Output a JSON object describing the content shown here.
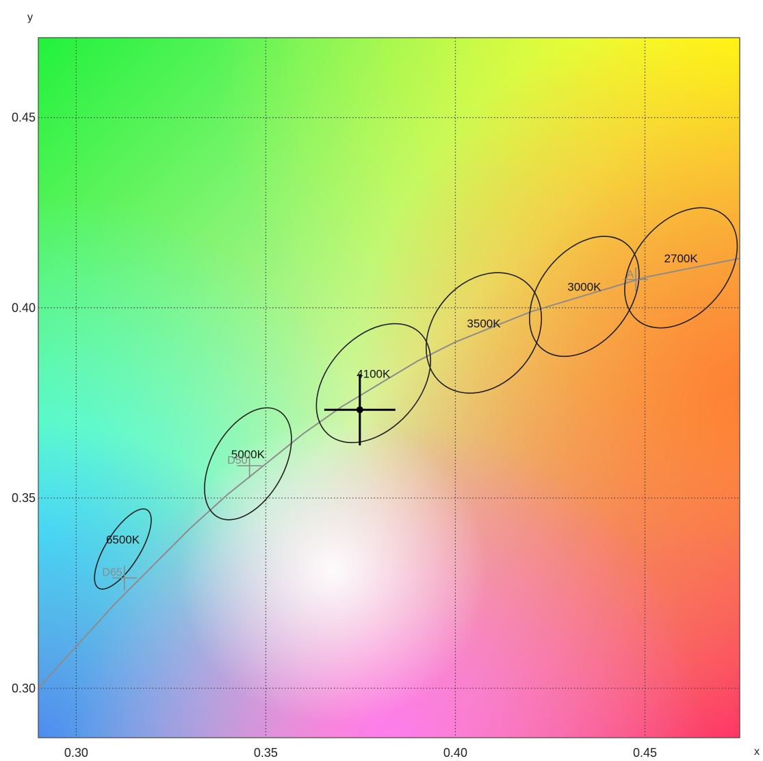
{
  "chart_data": {
    "type": "scatter",
    "title": "",
    "xlabel": "x",
    "ylabel": "y",
    "xlim": [
      0.29,
      0.475
    ],
    "ylim": [
      0.287,
      0.471
    ],
    "x_ticks": [
      "0.30",
      "0.35",
      "0.40",
      "0.45"
    ],
    "y_ticks": [
      "0.30",
      "0.35",
      "0.40",
      "0.45"
    ],
    "grid": true,
    "background": "CIE chromaticity color gradient",
    "ellipses": [
      {
        "label": "6500K",
        "cx": 0.3123,
        "cy": 0.3366,
        "a": 0.0045,
        "b": 0.0121,
        "angle_deg": 32
      },
      {
        "label": "5000K",
        "cx": 0.3453,
        "cy": 0.359,
        "a": 0.0094,
        "b": 0.0161,
        "angle_deg": 30
      },
      {
        "label": "4100K",
        "cx": 0.3784,
        "cy": 0.3802,
        "a": 0.0121,
        "b": 0.018,
        "angle_deg": 42
      },
      {
        "label": "3500K",
        "cx": 0.4075,
        "cy": 0.3934,
        "a": 0.0135,
        "b": 0.0173,
        "angle_deg": 40
      },
      {
        "label": "3000K",
        "cx": 0.434,
        "cy": 0.403,
        "a": 0.012,
        "b": 0.0177,
        "angle_deg": 38
      },
      {
        "label": "2700K",
        "cx": 0.4595,
        "cy": 0.4105,
        "a": 0.0122,
        "b": 0.0179,
        "angle_deg": 40
      }
    ],
    "locus": [
      [
        0.29,
        0.3
      ],
      [
        0.3,
        0.311
      ],
      [
        0.31,
        0.322
      ],
      [
        0.32,
        0.332
      ],
      [
        0.33,
        0.342
      ],
      [
        0.34,
        0.351
      ],
      [
        0.35,
        0.359
      ],
      [
        0.36,
        0.367
      ],
      [
        0.37,
        0.374
      ],
      [
        0.38,
        0.38
      ],
      [
        0.39,
        0.386
      ],
      [
        0.4,
        0.391
      ],
      [
        0.41,
        0.395
      ],
      [
        0.42,
        0.399
      ],
      [
        0.43,
        0.402
      ],
      [
        0.44,
        0.405
      ],
      [
        0.45,
        0.408
      ],
      [
        0.46,
        0.41
      ],
      [
        0.475,
        0.413
      ]
    ],
    "reference_points": [
      {
        "label": "D65",
        "x": 0.3127,
        "y": 0.329
      },
      {
        "label": "D50",
        "x": 0.3457,
        "y": 0.3585
      },
      {
        "label": "A",
        "x": 0.4476,
        "y": 0.4074
      }
    ],
    "measured_point": {
      "x": 0.3748,
      "y": 0.3732
    }
  }
}
